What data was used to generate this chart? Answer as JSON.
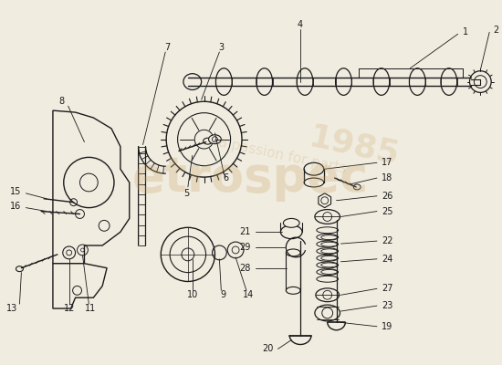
{
  "bg": "#f0ece0",
  "lc": "#1a1a1a",
  "wm_color": "#c8a060",
  "fig_w": 5.5,
  "fig_h": 4.0,
  "dpi": 100
}
